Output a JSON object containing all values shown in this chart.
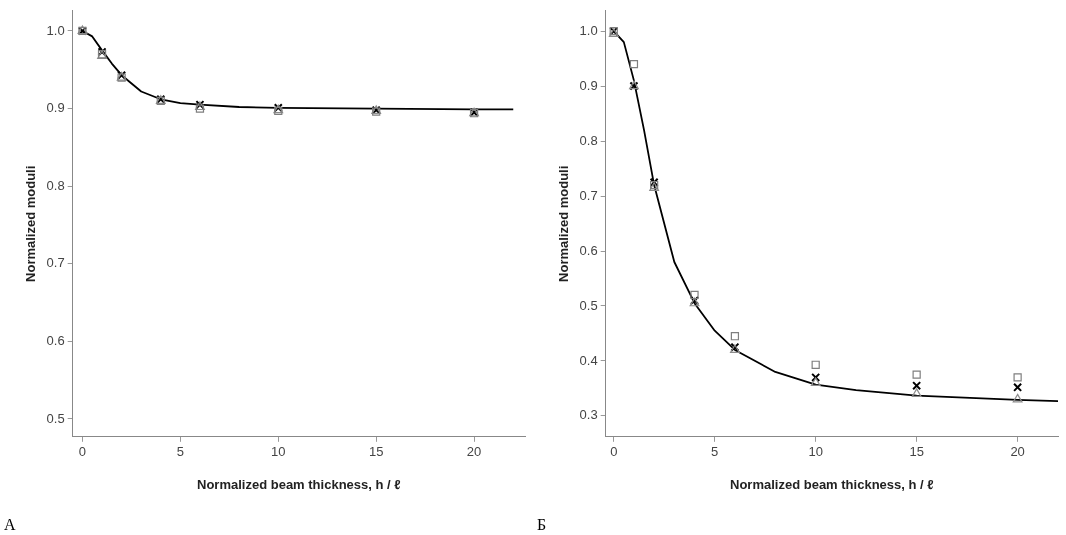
{
  "chart_data": [
    {
      "type": "scatter",
      "xlabel": "Normalized beam thickness, h / ℓ",
      "ylabel": "Normalized moduli",
      "annotations": [
        "А"
      ],
      "x": [
        0,
        1,
        2,
        4,
        6,
        10,
        15,
        20
      ],
      "xlim": [
        -0.5,
        22.6
      ],
      "xticks": [
        0,
        5,
        10,
        15,
        20
      ],
      "ylim": [
        0.477,
        1.026
      ],
      "yticks": [
        0.5,
        0.6,
        0.7,
        0.8,
        0.9,
        {
          "value": 1,
          "label": "1.0"
        }
      ],
      "grid": false,
      "legend": false,
      "series": [
        {
          "color": "#7f7f7f",
          "marker": "square",
          "values": [
            1.0,
            0.97,
            0.94,
            0.91,
            0.9,
            0.897,
            0.896,
            0.894
          ]
        },
        {
          "color": "#8c8c8c",
          "marker": "triangle",
          "values": [
            1.0,
            0.968,
            0.94,
            0.91,
            0.902,
            0.898,
            0.897,
            0.894
          ]
        },
        {
          "color": "#000000",
          "marker": "cross",
          "values": [
            1.0,
            0.973,
            0.943,
            0.912,
            0.905,
            0.901,
            0.898,
            0.895
          ]
        },
        {
          "type": "line",
          "color": "#000000",
          "marker": "none",
          "line_style": "solid",
          "x": [
            0,
            0.5,
            1,
            1.5,
            2,
            3,
            4,
            5,
            6,
            8,
            10,
            15,
            20,
            22
          ],
          "values": [
            1.0,
            0.993,
            0.975,
            0.958,
            0.943,
            0.922,
            0.912,
            0.907,
            0.905,
            0.902,
            0.901,
            0.9,
            0.899,
            0.899
          ]
        }
      ]
    },
    {
      "type": "scatter",
      "xlabel": "Normalized beam thickness, h / ℓ",
      "ylabel": "Normalized moduli",
      "annotations": [
        "Б"
      ],
      "x": [
        0,
        1,
        2,
        4,
        6,
        10,
        15,
        20
      ],
      "xlim": [
        -0.4,
        22
      ],
      "xticks": [
        0,
        5,
        10,
        15,
        20
      ],
      "ylim": [
        0.262,
        1.037
      ],
      "yticks": [
        0.3,
        0.4,
        0.5,
        0.6,
        0.7,
        0.8,
        0.9,
        {
          "value": 1,
          "label": "1.0"
        }
      ],
      "grid": false,
      "legend": false,
      "series": [
        {
          "color": "#7f7f7f",
          "marker": "square",
          "values": [
            1.0,
            0.94,
            0.72,
            0.52,
            0.445,
            0.393,
            0.375,
            0.37
          ]
        },
        {
          "color": "#8c8c8c",
          "marker": "triangle",
          "values": [
            0.995,
            0.9,
            0.715,
            0.505,
            0.42,
            0.36,
            0.34,
            0.33
          ]
        },
        {
          "color": "#000000",
          "marker": "cross",
          "values": [
            1.0,
            0.9,
            0.725,
            0.51,
            0.425,
            0.37,
            0.355,
            0.352
          ]
        },
        {
          "type": "line",
          "color": "#000000",
          "marker": "none",
          "line_style": "solid",
          "x": [
            0,
            0.5,
            1,
            1.5,
            2,
            3,
            4,
            5,
            6,
            8,
            10,
            12,
            15,
            20,
            22
          ],
          "values": [
            1.0,
            0.98,
            0.91,
            0.82,
            0.72,
            0.58,
            0.505,
            0.455,
            0.42,
            0.38,
            0.357,
            0.347,
            0.337,
            0.329,
            0.327
          ]
        }
      ]
    }
  ]
}
